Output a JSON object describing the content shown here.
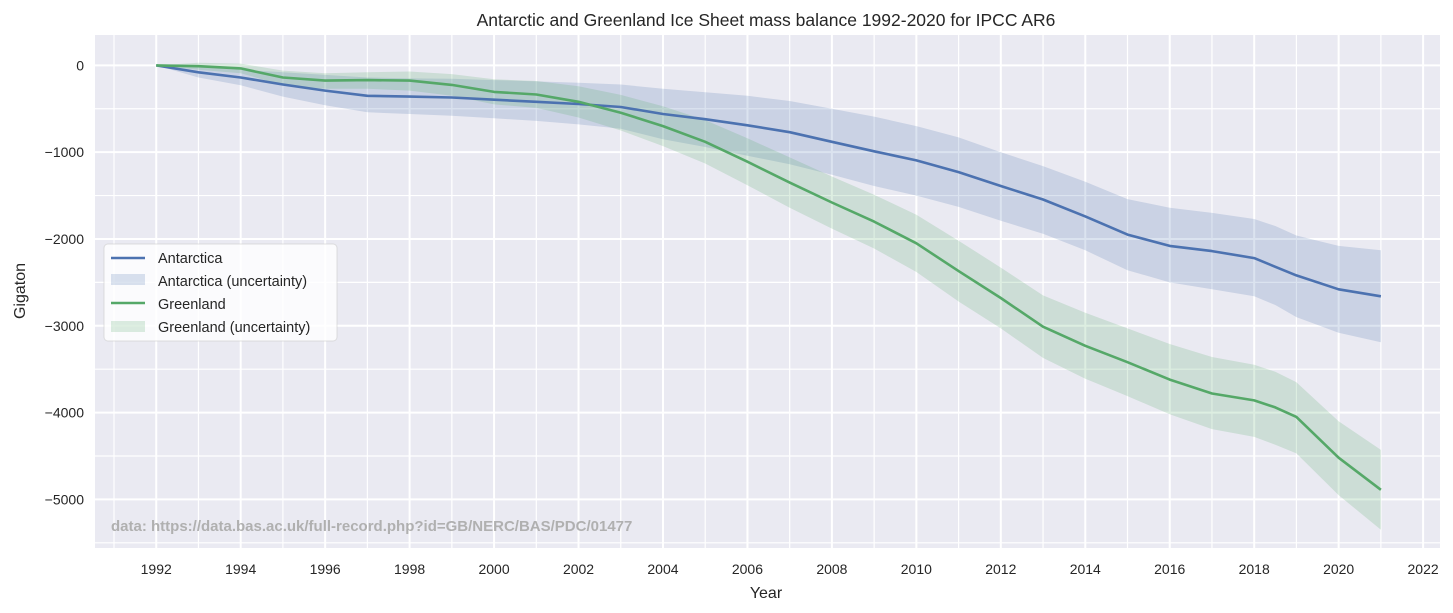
{
  "chart_data": {
    "type": "line",
    "title": "Antarctic and Greenland Ice Sheet mass balance 1992-2020 for IPCC AR6",
    "xlabel": "Year",
    "ylabel": "Gigaton",
    "xlim": [
      1990.55,
      2022.4
    ],
    "ylim": [
      -5560,
      350
    ],
    "x_ticks": [
      1992,
      1994,
      1996,
      1998,
      2000,
      2002,
      2004,
      2006,
      2008,
      2010,
      2012,
      2014,
      2016,
      2018,
      2020,
      2022
    ],
    "x_tick_labels": [
      "1992",
      "1994",
      "1996",
      "1998",
      "2000",
      "2002",
      "2004",
      "2006",
      "2008",
      "2010",
      "2012",
      "2014",
      "2016",
      "2018",
      "2020",
      "2022"
    ],
    "x_minor_ticks": [
      1991,
      1993,
      1995,
      1997,
      1999,
      2001,
      2003,
      2005,
      2007,
      2009,
      2011,
      2013,
      2015,
      2017,
      2019,
      2021
    ],
    "y_ticks": [
      0,
      -1000,
      -2000,
      -3000,
      -4000,
      -5000
    ],
    "y_tick_labels": [
      "0",
      "−1000",
      "−2000",
      "−3000",
      "−4000",
      "−5000"
    ],
    "y_minor_ticks": [
      -500,
      -1500,
      -2500,
      -3500,
      -4500,
      -5500
    ],
    "grid": true,
    "legend_position": "center-left",
    "annotation": "data: https://data.bas.ac.uk/full-record.php?id=GB/NERC/BAS/PDC/01477",
    "x": [
      1992,
      1993,
      1994,
      1995,
      1996,
      1997,
      1998,
      1999,
      2000,
      2001,
      2002,
      2003,
      2004,
      2005,
      2006,
      2007,
      2008,
      2009,
      2010,
      2011,
      2012,
      2013,
      2014,
      2015,
      2016,
      2017,
      2018,
      2018.5,
      2019,
      2020,
      2021
    ],
    "series": [
      {
        "name": "Antarctica",
        "color": "#4c72b0",
        "values": [
          0,
          -80,
          -140,
          -220,
          -290,
          -350,
          -360,
          -370,
          -395,
          -420,
          -445,
          -480,
          -560,
          -620,
          -690,
          -770,
          -880,
          -990,
          -1095,
          -1230,
          -1390,
          -1545,
          -1740,
          -1950,
          -2080,
          -2140,
          -2220,
          -2320,
          -2420,
          -2580,
          -2660
        ],
        "uncertainty_name": "Antarctica (uncertainty)",
        "upper": [
          0,
          -20,
          -50,
          -80,
          -110,
          -140,
          -150,
          -155,
          -170,
          -185,
          -200,
          -220,
          -270,
          -310,
          -350,
          -410,
          -500,
          -590,
          -700,
          -830,
          -1000,
          -1160,
          -1340,
          -1540,
          -1640,
          -1700,
          -1770,
          -1850,
          -1960,
          -2080,
          -2130
        ],
        "lower": [
          0,
          -140,
          -230,
          -360,
          -460,
          -540,
          -560,
          -580,
          -610,
          -640,
          -680,
          -730,
          -850,
          -940,
          -1040,
          -1140,
          -1260,
          -1390,
          -1500,
          -1630,
          -1790,
          -1940,
          -2130,
          -2360,
          -2500,
          -2580,
          -2660,
          -2760,
          -2900,
          -3080,
          -3190
        ]
      },
      {
        "name": "Greenland",
        "color": "#55a868",
        "values": [
          0,
          -10,
          -35,
          -140,
          -175,
          -170,
          -175,
          -225,
          -305,
          -335,
          -420,
          -545,
          -700,
          -880,
          -1110,
          -1350,
          -1580,
          -1800,
          -2050,
          -2370,
          -2680,
          -3010,
          -3230,
          -3420,
          -3620,
          -3780,
          -3860,
          -3940,
          -4050,
          -4520,
          -4890
        ],
        "uncertainty_name": "Greenland (uncertainty)",
        "upper": [
          0,
          30,
          20,
          -60,
          -90,
          -80,
          -70,
          -100,
          -160,
          -180,
          -240,
          -340,
          -470,
          -630,
          -840,
          -1060,
          -1280,
          -1490,
          -1720,
          -2020,
          -2330,
          -2650,
          -2850,
          -3030,
          -3210,
          -3360,
          -3450,
          -3530,
          -3650,
          -4100,
          -4430
        ],
        "lower": [
          0,
          -50,
          -90,
          -230,
          -270,
          -270,
          -290,
          -350,
          -450,
          -490,
          -600,
          -750,
          -930,
          -1130,
          -1380,
          -1640,
          -1880,
          -2110,
          -2380,
          -2720,
          -3030,
          -3370,
          -3610,
          -3810,
          -4020,
          -4190,
          -4280,
          -4370,
          -4470,
          -4950,
          -5350
        ]
      }
    ]
  }
}
